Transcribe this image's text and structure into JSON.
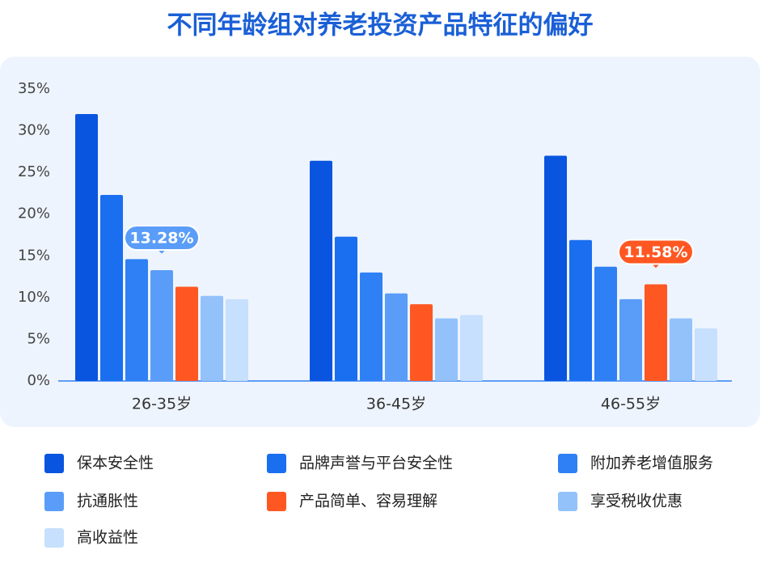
{
  "chart_data": {
    "type": "bar",
    "title": "不同年龄组对养老投资产品特征的偏好",
    "categories": [
      "26-35岁",
      "36-45岁",
      "46-55岁"
    ],
    "series": [
      {
        "name": "保本安全性",
        "color": "#0a55e0",
        "values": [
          32.0,
          26.4,
          27.0
        ]
      },
      {
        "name": "品牌声誉与平台安全性",
        "color": "#1a6ef0",
        "values": [
          22.3,
          17.3,
          16.9
        ]
      },
      {
        "name": "附加养老增值服务",
        "color": "#2f80f5",
        "values": [
          14.6,
          13.0,
          13.7
        ]
      },
      {
        "name": "抗通胀性",
        "color": "#5a9df8",
        "values": [
          13.28,
          10.5,
          9.8
        ],
        "value_labels": [
          "13.28%",
          null,
          null
        ]
      },
      {
        "name": "产品简单、容易理解",
        "color": "#ff5722",
        "values": [
          11.3,
          9.2,
          11.58
        ],
        "value_labels": [
          null,
          null,
          "11.58%"
        ]
      },
      {
        "name": "享受税收优惠",
        "color": "#93c2fb",
        "values": [
          10.2,
          7.5,
          7.5
        ]
      },
      {
        "name": "高收益性",
        "color": "#c6e0fd",
        "values": [
          9.8,
          7.9,
          6.3
        ]
      }
    ],
    "ylim": [
      0,
      35
    ],
    "yticks": [
      {
        "value": 0,
        "label": "0%"
      },
      {
        "value": 5,
        "label": "5%"
      },
      {
        "value": 10,
        "label": "10%"
      },
      {
        "value": 15,
        "label": "15%"
      },
      {
        "value": 20,
        "label": "20%"
      },
      {
        "value": 25,
        "label": "25%"
      },
      {
        "value": 30,
        "label": "30%"
      },
      {
        "value": 35,
        "label": "35%"
      }
    ],
    "grid": false
  }
}
